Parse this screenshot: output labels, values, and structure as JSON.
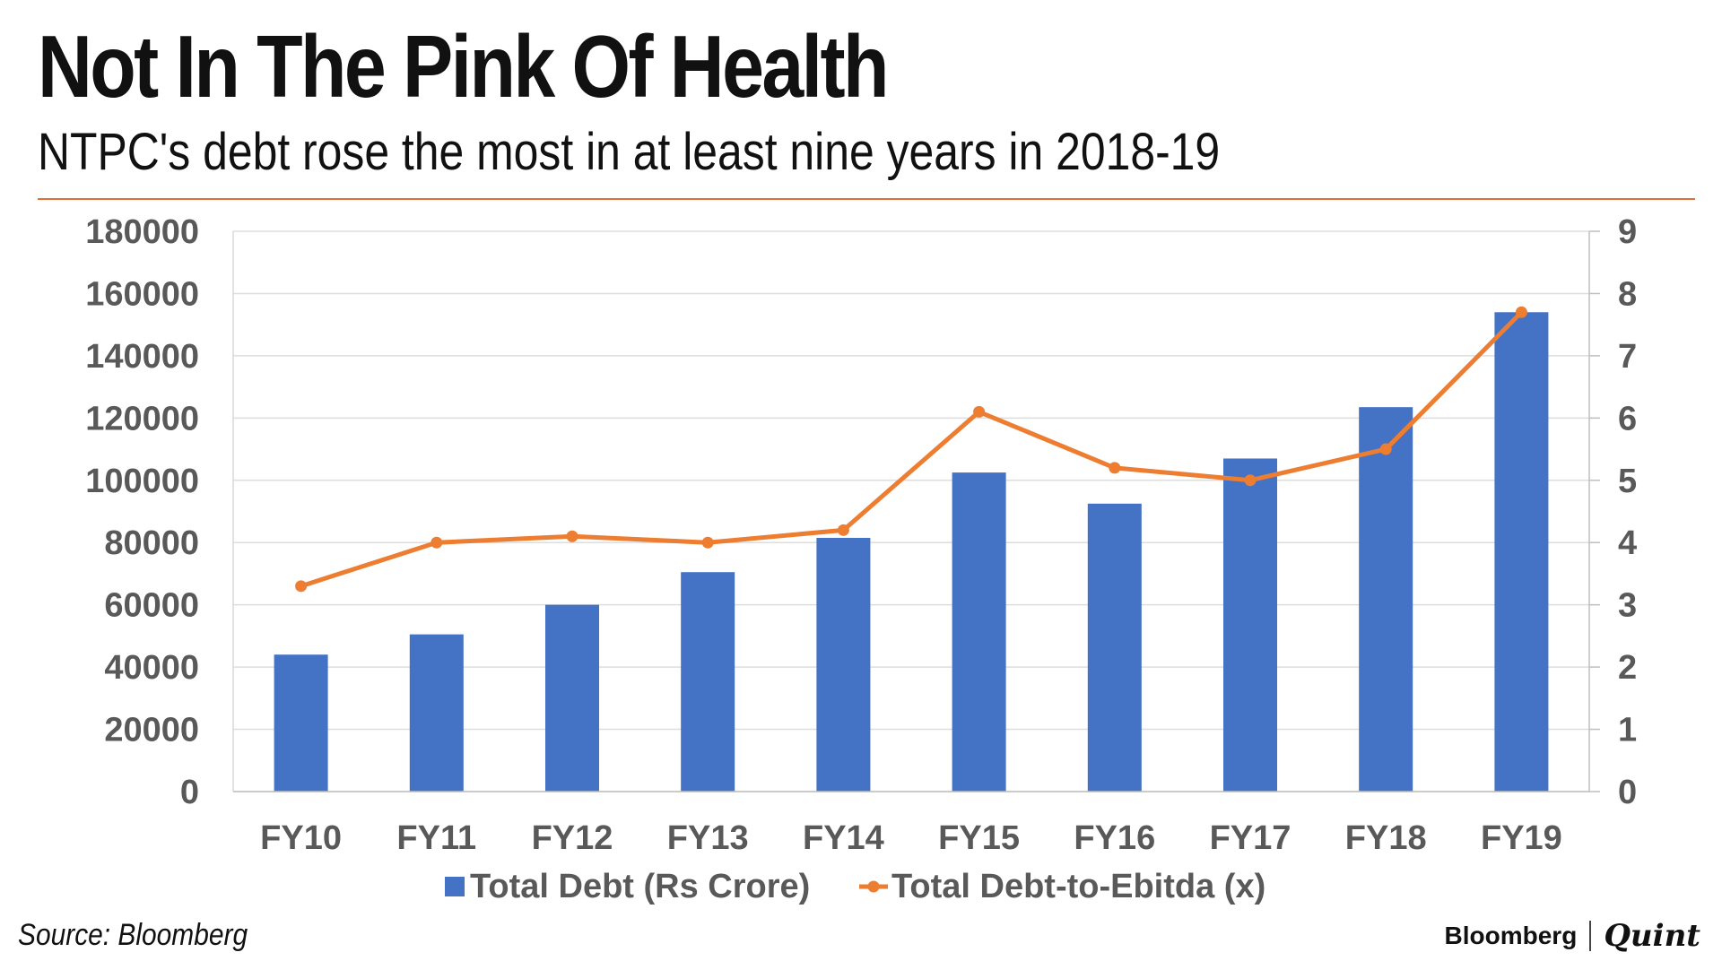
{
  "header": {
    "title": "Not In The Pink Of Health",
    "subtitle": "NTPC's debt rose the most in at least nine years in 2018-19"
  },
  "footer": {
    "source": "Source: Bloomberg",
    "brand_left": "Bloomberg",
    "brand_right": "Quint"
  },
  "colors": {
    "bar": "#4472c4",
    "line": "#ed7d31",
    "rule": "#e0703a",
    "grid": "#dddddd",
    "axis_text": "#595959"
  },
  "chart_data": {
    "type": "bar",
    "title": "Not In The Pink Of Health",
    "categories": [
      "FY10",
      "FY11",
      "FY12",
      "FY13",
      "FY14",
      "FY15",
      "FY16",
      "FY17",
      "FY18",
      "FY19"
    ],
    "series": [
      {
        "name": "Total Debt (Rs Crore)",
        "type": "bar",
        "axis": "left",
        "values": [
          44000,
          50500,
          60000,
          70500,
          81500,
          102500,
          92500,
          107000,
          123500,
          154000
        ]
      },
      {
        "name": "Total Debt-to-Ebitda (x)",
        "type": "line",
        "axis": "right",
        "values": [
          3.3,
          4.0,
          4.1,
          4.0,
          4.2,
          6.1,
          5.2,
          5.0,
          5.5,
          7.7
        ]
      }
    ],
    "y_left": {
      "min": 0,
      "max": 180000,
      "ticks": [
        "0",
        "20000",
        "40000",
        "60000",
        "80000",
        "100000",
        "120000",
        "140000",
        "160000",
        "180000"
      ]
    },
    "y_right": {
      "min": 0,
      "max": 9,
      "ticks": [
        "0",
        "1",
        "2",
        "3",
        "4",
        "5",
        "6",
        "7",
        "8",
        "9"
      ]
    },
    "grid": true,
    "legend": "bottom"
  }
}
